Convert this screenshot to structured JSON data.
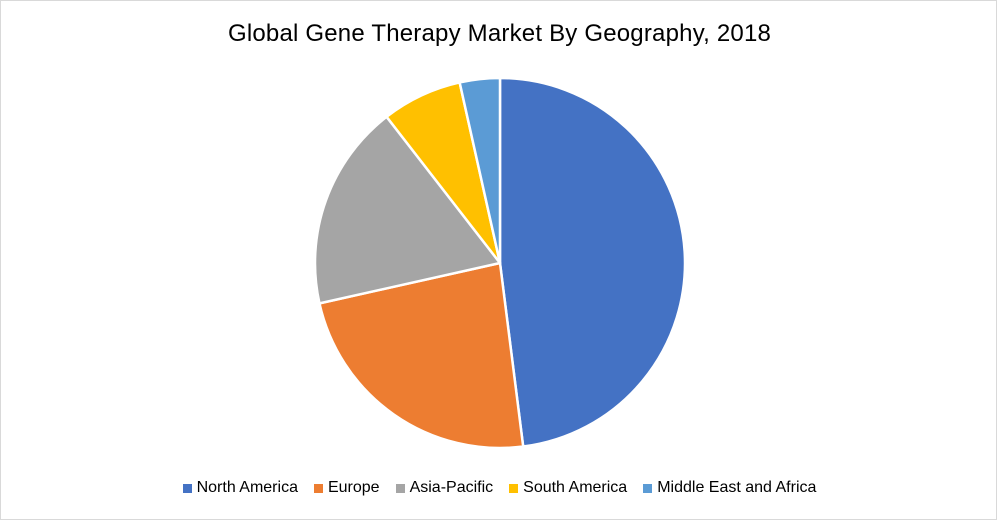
{
  "chart_data": {
    "type": "pie",
    "title": "Global Gene Therapy Market By Geography, 2018",
    "categories": [
      "North America",
      "Europe",
      "Asia-Pacific",
      "South America",
      "Middle East and Africa"
    ],
    "values": [
      48,
      23.5,
      18,
      7,
      3.5
    ],
    "colors": [
      "#4472C4",
      "#ED7D31",
      "#A5A5A5",
      "#FFC000",
      "#5B9BD5"
    ],
    "legend_position": "bottom",
    "start_angle": "12 o'clock",
    "direction": "clockwise"
  }
}
